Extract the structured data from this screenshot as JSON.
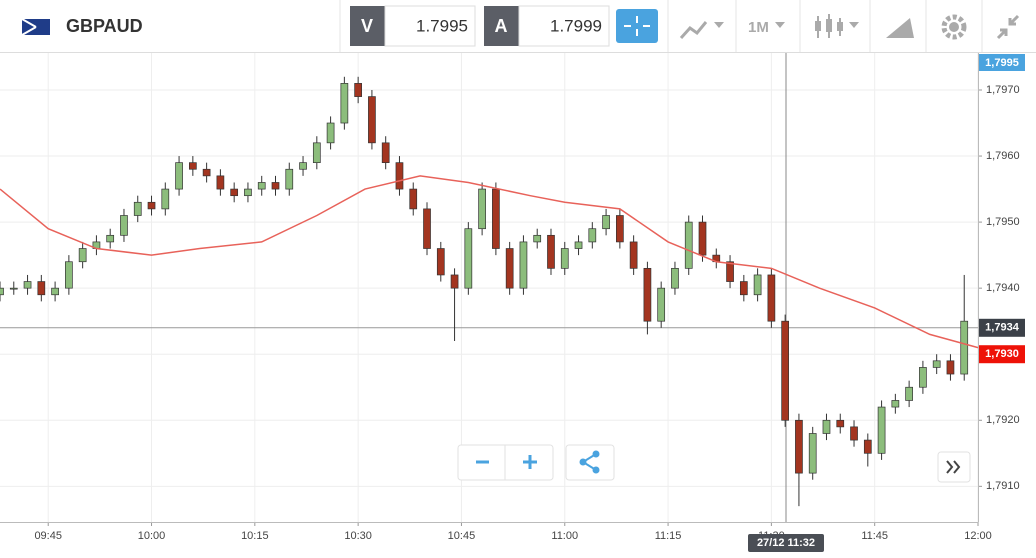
{
  "toolbar": {
    "symbol": "GBPAUD",
    "bid_label": "V",
    "bid": "1.7995",
    "ask_label": "A",
    "ask": "1.7999",
    "period": "1M"
  },
  "chart_data": {
    "type": "candlestick",
    "x": [
      "09:38",
      "09:40",
      "09:42",
      "09:44",
      "09:46",
      "09:48",
      "09:50",
      "09:52",
      "09:54",
      "09:56",
      "09:58",
      "10:00",
      "10:02",
      "10:04",
      "10:06",
      "10:08",
      "10:10",
      "10:12",
      "10:14",
      "10:16",
      "10:18",
      "10:20",
      "10:22",
      "10:24",
      "10:26",
      "10:28",
      "10:30",
      "10:32",
      "10:34",
      "10:36",
      "10:38",
      "10:40",
      "10:42",
      "10:44",
      "10:46",
      "10:48",
      "10:50",
      "10:52",
      "10:54",
      "10:56",
      "10:58",
      "11:00",
      "11:02",
      "11:04",
      "11:06",
      "11:08",
      "11:10",
      "11:12",
      "11:14",
      "11:16",
      "11:18",
      "11:20",
      "11:22",
      "11:24",
      "11:26",
      "11:28",
      "11:30",
      "11:32",
      "11:34",
      "11:36",
      "11:38",
      "11:40",
      "11:42",
      "11:44",
      "11:46",
      "11:48",
      "11:50",
      "11:52",
      "11:54",
      "11:56",
      "11:58"
    ],
    "open": [
      1.7939,
      1.794,
      1.794,
      1.7941,
      1.7939,
      1.794,
      1.7944,
      1.7946,
      1.7947,
      1.7948,
      1.7951,
      1.7953,
      1.7952,
      1.7955,
      1.7959,
      1.7958,
      1.7957,
      1.7955,
      1.7954,
      1.7955,
      1.7956,
      1.7955,
      1.7958,
      1.7959,
      1.7962,
      1.7965,
      1.7971,
      1.7969,
      1.7962,
      1.7959,
      1.7955,
      1.7952,
      1.7946,
      1.7942,
      1.794,
      1.7949,
      1.7955,
      1.7946,
      1.794,
      1.7947,
      1.7948,
      1.7943,
      1.7946,
      1.7947,
      1.7949,
      1.7951,
      1.7947,
      1.7943,
      1.7935,
      1.794,
      1.7943,
      1.795,
      1.7945,
      1.7944,
      1.7941,
      1.7939,
      1.7942,
      1.7935,
      1.792,
      1.7912,
      1.7918,
      1.792,
      1.7919,
      1.7917,
      1.7915,
      1.7922,
      1.7923,
      1.7925,
      1.7928,
      1.7929,
      1.7927
    ],
    "high": [
      1.7941,
      1.7941,
      1.7942,
      1.7942,
      1.7941,
      1.7945,
      1.7947,
      1.7948,
      1.7949,
      1.7952,
      1.7954,
      1.7954,
      1.7956,
      1.796,
      1.796,
      1.7959,
      1.7958,
      1.7956,
      1.7956,
      1.7957,
      1.7957,
      1.7959,
      1.796,
      1.7963,
      1.7966,
      1.7972,
      1.7972,
      1.797,
      1.7963,
      1.796,
      1.7956,
      1.7953,
      1.7947,
      1.7943,
      1.795,
      1.7956,
      1.7956,
      1.7947,
      1.7948,
      1.7949,
      1.7949,
      1.7947,
      1.7948,
      1.795,
      1.7952,
      1.7952,
      1.7948,
      1.7944,
      1.7941,
      1.7944,
      1.7951,
      1.7951,
      1.7946,
      1.7945,
      1.7942,
      1.7943,
      1.7943,
      1.7936,
      1.7921,
      1.7919,
      1.7921,
      1.7921,
      1.792,
      1.7918,
      1.7923,
      1.7924,
      1.7926,
      1.7929,
      1.793,
      1.793,
      1.7942
    ],
    "low": [
      1.7938,
      1.7939,
      1.7939,
      1.7938,
      1.7938,
      1.7939,
      1.7943,
      1.7945,
      1.7946,
      1.7947,
      1.795,
      1.7951,
      1.7951,
      1.7954,
      1.7957,
      1.7956,
      1.7954,
      1.7953,
      1.7953,
      1.7954,
      1.7954,
      1.7954,
      1.7957,
      1.7958,
      1.7961,
      1.7964,
      1.7968,
      1.7961,
      1.7958,
      1.7954,
      1.7951,
      1.7945,
      1.7941,
      1.7932,
      1.7939,
      1.7948,
      1.7945,
      1.7939,
      1.7939,
      1.7946,
      1.7942,
      1.7942,
      1.7945,
      1.7946,
      1.7948,
      1.7946,
      1.7942,
      1.7933,
      1.7934,
      1.7939,
      1.7942,
      1.7944,
      1.7943,
      1.794,
      1.7938,
      1.7938,
      1.7934,
      1.7919,
      1.7907,
      1.7911,
      1.7917,
      1.7918,
      1.7916,
      1.7913,
      1.7914,
      1.7921,
      1.7922,
      1.7924,
      1.7927,
      1.7926,
      1.7926
    ],
    "close": [
      1.794,
      1.794,
      1.7941,
      1.7939,
      1.794,
      1.7944,
      1.7946,
      1.7947,
      1.7948,
      1.7951,
      1.7953,
      1.7952,
      1.7955,
      1.7959,
      1.7958,
      1.7957,
      1.7955,
      1.7954,
      1.7955,
      1.7956,
      1.7955,
      1.7958,
      1.7959,
      1.7962,
      1.7965,
      1.7971,
      1.7969,
      1.7962,
      1.7959,
      1.7955,
      1.7952,
      1.7946,
      1.7942,
      1.794,
      1.7949,
      1.7955,
      1.7946,
      1.794,
      1.7947,
      1.7948,
      1.7943,
      1.7946,
      1.7947,
      1.7949,
      1.7951,
      1.7947,
      1.7943,
      1.7935,
      1.794,
      1.7943,
      1.795,
      1.7945,
      1.7944,
      1.7941,
      1.7939,
      1.7942,
      1.7935,
      1.792,
      1.7912,
      1.7918,
      1.792,
      1.7919,
      1.7917,
      1.7915,
      1.7922,
      1.7923,
      1.7925,
      1.7928,
      1.7929,
      1.7927,
      1.7935
    ],
    "up_color": "#8cbd7c",
    "down_color": "#a33520",
    "lines": [
      {
        "color": "#e8625a",
        "x": [
          "09:38",
          "09:45",
          "09:52",
          "10:00",
          "10:07",
          "10:16",
          "10:24",
          "10:31",
          "10:39",
          "10:46",
          "10:55",
          "11:00",
          "11:08",
          "11:15",
          "11:22",
          "11:30",
          "11:37",
          "11:45",
          "11:53",
          "12:00"
        ],
        "values": [
          1.7955,
          1.7949,
          1.7946,
          1.7945,
          1.7946,
          1.7947,
          1.7951,
          1.7955,
          1.7957,
          1.7956,
          1.7954,
          1.7953,
          1.7952,
          1.7947,
          1.7944,
          1.7943,
          1.794,
          1.7937,
          1.7933,
          1.7931
        ]
      }
    ],
    "xlim": [
      "09:38",
      "12:00"
    ],
    "xticks": [
      "09:45",
      "10:00",
      "10:15",
      "10:30",
      "10:45",
      "11:00",
      "11:15",
      "11:30",
      "11:45",
      "12:00"
    ],
    "ylim": [
      1.79046,
      1.79756
    ],
    "yticks": [
      {
        "value": 1.791,
        "label": "1,7910"
      },
      {
        "value": 1.792,
        "label": "1,7920"
      },
      {
        "value": 1.793,
        "label": "1,7930"
      },
      {
        "value": 1.794,
        "label": "1,7940"
      },
      {
        "value": 1.795,
        "label": "1,7950"
      },
      {
        "value": 1.796,
        "label": "1,7960"
      },
      {
        "value": 1.797,
        "label": "1,7970"
      }
    ],
    "grid": true,
    "top_label": {
      "label": "1,7995",
      "color": "#4aa3df"
    },
    "price_labels": [
      {
        "value": 1.7934,
        "label": "1,7934",
        "color": "#3b4048"
      },
      {
        "value": 1.793,
        "label": "1,7930",
        "color": "#ee1208"
      }
    ],
    "crosshair_label": "27/12 11:32"
  }
}
